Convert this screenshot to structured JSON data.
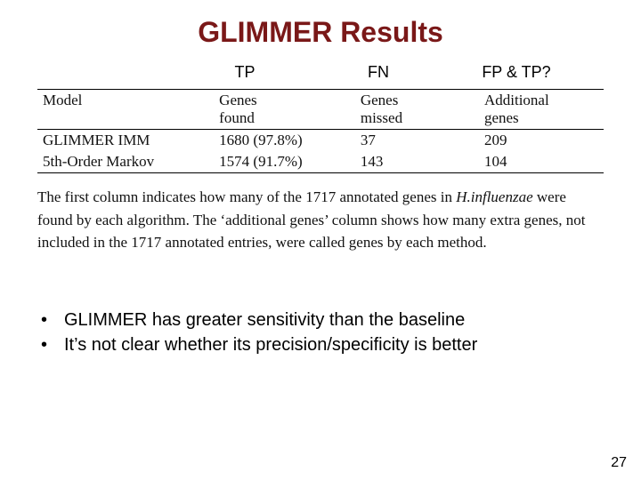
{
  "title": {
    "text": "GLIMMER Results",
    "color": "#7a1818"
  },
  "annotations": {
    "tp": "TP",
    "fn": "FN",
    "fp": "FP & TP?"
  },
  "table": {
    "headers": {
      "model": "Model",
      "genes_found_l1": "Genes",
      "genes_found_l2": "found",
      "genes_missed_l1": "Genes",
      "genes_missed_l2": "missed",
      "additional_l1": "Additional",
      "additional_l2": "genes"
    },
    "rows": [
      {
        "model": "GLIMMER IMM",
        "found": "1680 (97.8%)",
        "missed": "37",
        "additional": "209"
      },
      {
        "model": "5th-Order Markov",
        "found": "1574 (91.7%)",
        "missed": "143",
        "additional": "104"
      }
    ]
  },
  "caption": {
    "part1": "The first column indicates how many of the 1717 annotated genes in ",
    "italic": "H.influenzae",
    "part2": " were found by each algorithm. The ‘additional genes’ column shows how many extra genes, not included in the 1717 annotated entries, were called genes by each method."
  },
  "bullets": [
    "GLIMMER has greater sensitivity than the baseline",
    "It’s not clear whether its precision/specificity is better"
  ],
  "page_number": "27"
}
